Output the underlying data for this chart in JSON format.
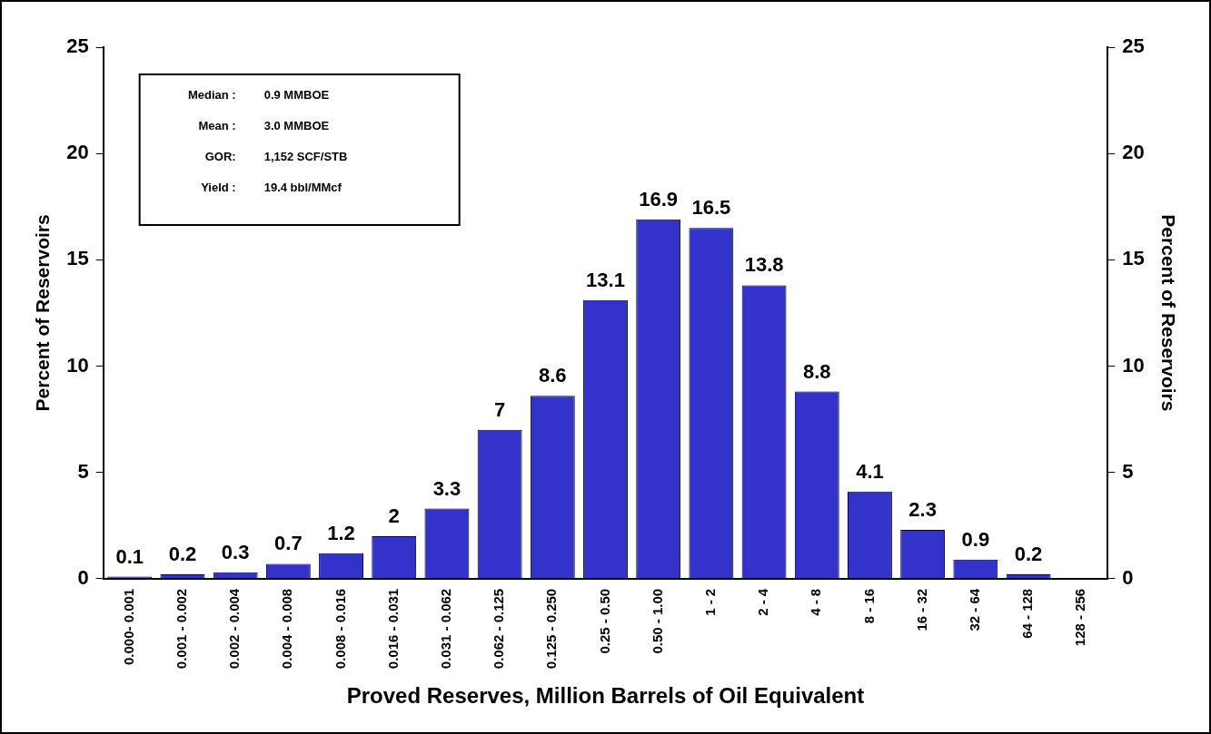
{
  "chart_data": {
    "type": "bar",
    "xlabel": "Proved Reserves, Million Barrels of Oil Equivalent",
    "ylabel": "Percent of Reservoirs",
    "y2label": "Percent of Reservoirs",
    "categories": [
      "0.000- 0.001",
      "0.001 - 0.002",
      "0.002 - 0.004",
      "0.004 - 0.008",
      "0.008 - 0.016",
      "0.016 - 0.031",
      "0.031 - 0.062",
      "0.062 - 0.125",
      "0.125 - 0.250",
      "0.25 - 0.50",
      "0.50 - 1.00",
      "1 - 2",
      "2 - 4",
      "4 - 8",
      "8 - 16",
      "16 - 32",
      "32 - 64",
      "64 - 128",
      "128 - 256"
    ],
    "values": [
      0.1,
      0.2,
      0.3,
      0.7,
      1.2,
      2,
      3.3,
      7,
      8.6,
      13.1,
      16.9,
      16.5,
      13.8,
      8.8,
      4.1,
      2.3,
      0.9,
      0.2,
      null
    ],
    "color": "#3333cc",
    "data_labels": true,
    "ylim": [
      0,
      25
    ],
    "yticks": [
      0,
      5,
      10,
      15,
      20,
      25
    ],
    "y2lim": [
      0,
      25
    ],
    "y2ticks": [
      0,
      5,
      10,
      15,
      20,
      25
    ],
    "annotations": [
      "Median :\t0.9 MMBOE",
      "Mean :\t3.0 MMBOE",
      "GOR:\t1,152 SCF/STB",
      "Yield :\t19.4 bbl/MMcf"
    ],
    "grid": false,
    "legend": false
  }
}
